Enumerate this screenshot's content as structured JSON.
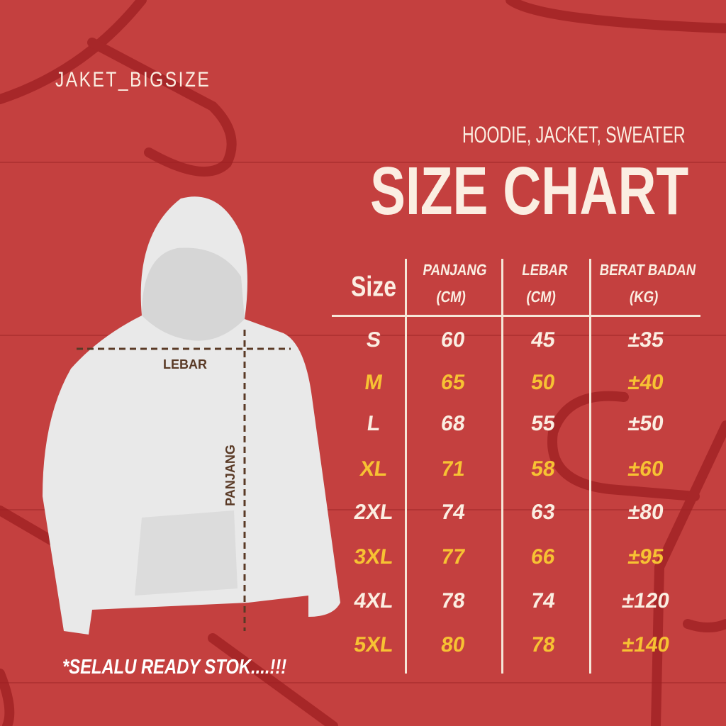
{
  "brand": "JAKET_BIGSIZE",
  "subtitle": "HOODIE, JACKET, SWEATER",
  "title": "SIZE CHART",
  "headers": [
    {
      "line1": "Size",
      "line2": ""
    },
    {
      "line1": "PANJANG",
      "line2": "(CM)"
    },
    {
      "line1": "LEBAR",
      "line2": "(CM)"
    },
    {
      "line1": "BERAT BADAN",
      "line2": "(KG)"
    }
  ],
  "rows": [
    {
      "size": "S",
      "panjang": "60",
      "lebar": "45",
      "berat": "±35",
      "highlight": false
    },
    {
      "size": "M",
      "panjang": "65",
      "lebar": "50",
      "berat": "±40",
      "highlight": true
    },
    {
      "size": "L",
      "panjang": "68",
      "lebar": "55",
      "berat": "±50",
      "highlight": false
    },
    {
      "size": "XL",
      "panjang": "71",
      "lebar": "58",
      "berat": "±60",
      "highlight": true
    },
    {
      "size": "2XL",
      "panjang": "74",
      "lebar": "63",
      "berat": "±80",
      "highlight": false
    },
    {
      "size": "3XL",
      "panjang": "77",
      "lebar": "66",
      "berat": "±95",
      "highlight": true
    },
    {
      "size": "4XL",
      "panjang": "78",
      "lebar": "74",
      "berat": "±120",
      "highlight": false
    },
    {
      "size": "5XL",
      "panjang": "80",
      "lebar": "78",
      "berat": "±140",
      "highlight": true
    }
  ],
  "diagram": {
    "width_label": "LEBAR",
    "length_label": "PANJANG"
  },
  "note": "*SELALU READY STOK....!!!",
  "colors": {
    "background": "#c4403f",
    "text": "#fbeee2",
    "highlight": "#f7c233"
  }
}
